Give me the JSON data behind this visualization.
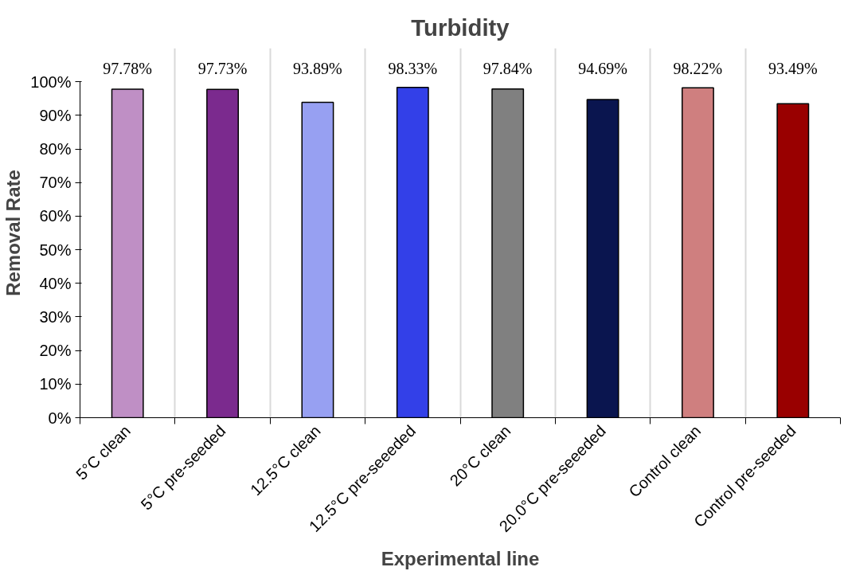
{
  "chart_data": {
    "type": "bar",
    "title": "Turbidity",
    "xlabel": "Experimental line",
    "ylabel": "Removal Rate",
    "categories": [
      "5°C clean",
      "5°C pre-seeded",
      "12.5°C clean",
      "12.5°C pre-seeeded",
      "20°C clean",
      "20.0°C pre-seeeded",
      "Control clean",
      "Control pre-seeded"
    ],
    "values": [
      97.78,
      97.73,
      93.89,
      98.33,
      97.84,
      94.69,
      98.22,
      93.49
    ],
    "colors": [
      "#bf8fc5",
      "#7b2a8e",
      "#97a0f2",
      "#3340e8",
      "#808080",
      "#0a154f",
      "#cf7f7f",
      "#990000"
    ],
    "value_labels": [
      "97.78%",
      "97.73%",
      "93.89%",
      "98.33%",
      "97.84%",
      "94.69%",
      "98.22%",
      "93.49%"
    ],
    "ylim": [
      0,
      100
    ],
    "yticks": [
      {
        "value": 0,
        "label": "0%"
      },
      {
        "value": 10,
        "label": "10%"
      },
      {
        "value": 20,
        "label": "20%"
      },
      {
        "value": 30,
        "label": "30%"
      },
      {
        "value": 40,
        "label": "40%"
      },
      {
        "value": 50,
        "label": "50%"
      },
      {
        "value": 60,
        "label": "60%"
      },
      {
        "value": 70,
        "label": "70%"
      },
      {
        "value": 80,
        "label": "80%"
      },
      {
        "value": 90,
        "label": "90%"
      },
      {
        "value": 100,
        "label": "100%"
      }
    ],
    "grid": "x"
  }
}
